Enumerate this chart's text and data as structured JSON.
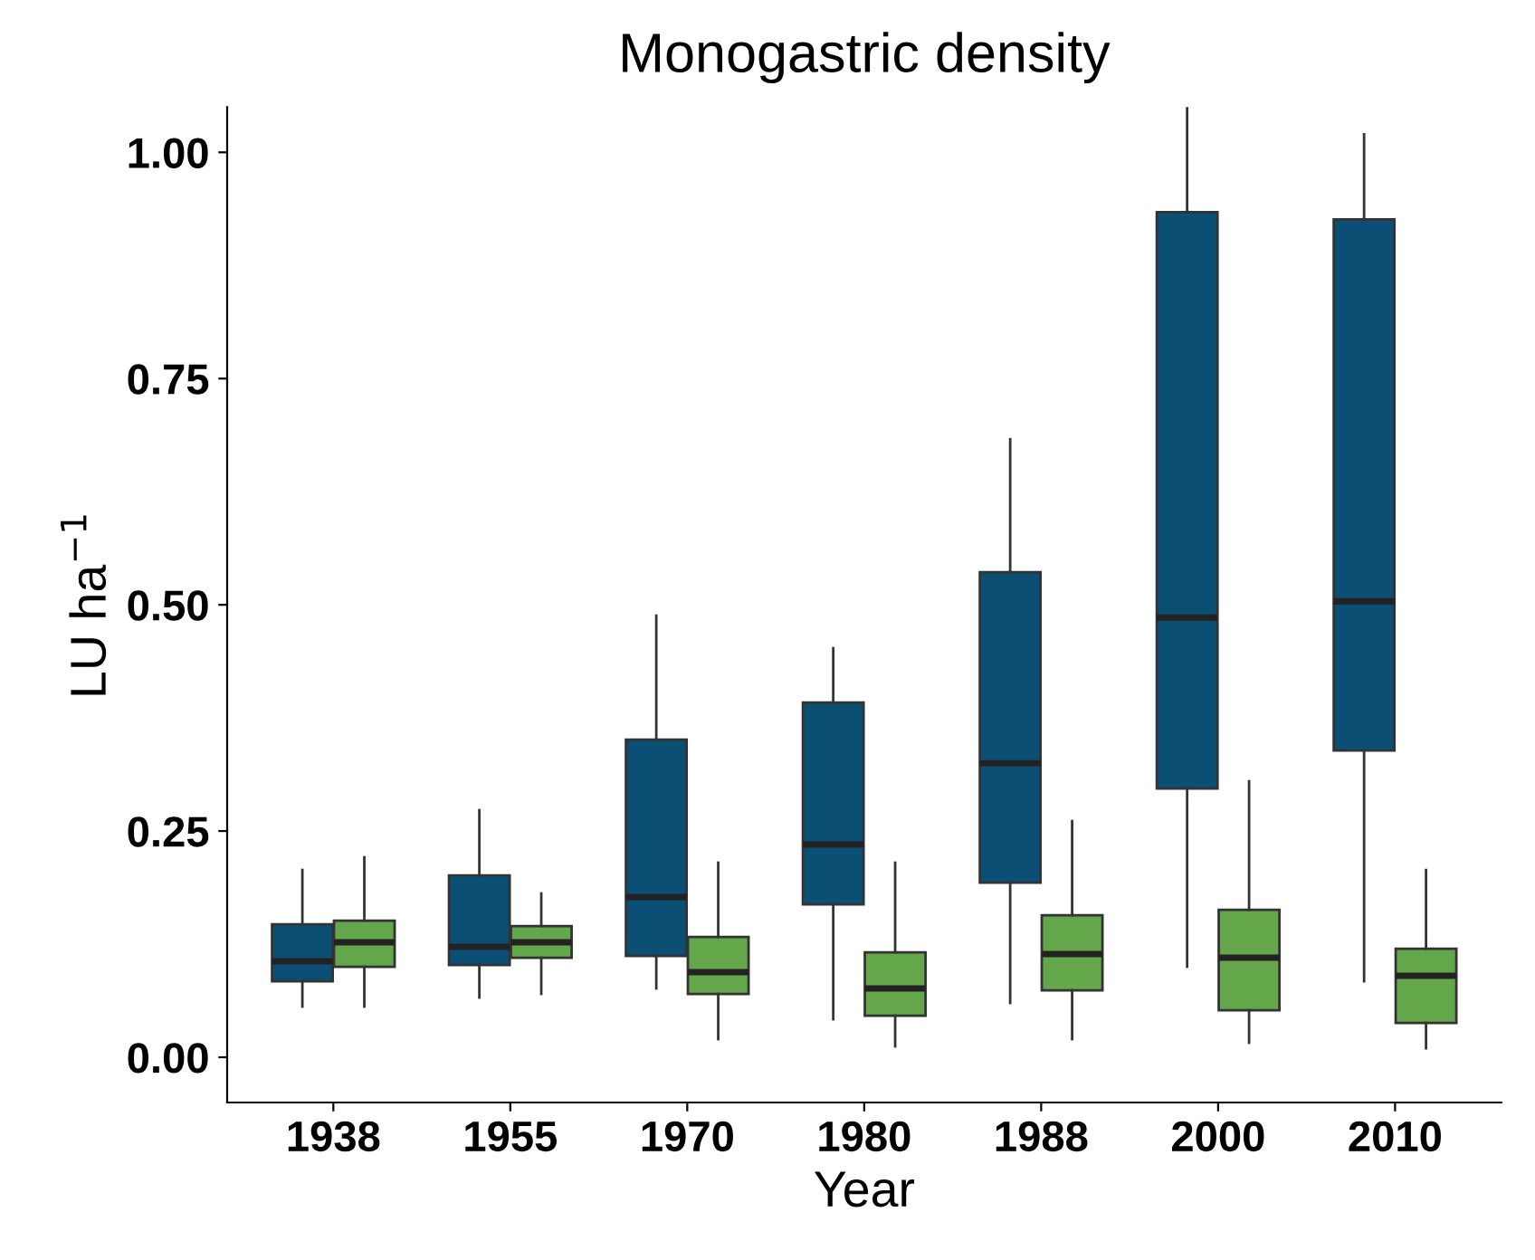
{
  "chart_data": {
    "type": "box",
    "title": "Monogastric density",
    "xlabel": "Year",
    "ylabel": "LU ha$^{−1}$",
    "categories": [
      "1938",
      "1955",
      "1970",
      "1980",
      "1988",
      "2000",
      "2010"
    ],
    "ylim": [
      -0.05,
      1.05
    ],
    "yticks": [
      {
        "value": 0,
        "label": "0.00"
      },
      {
        "value": 0.25,
        "label": "0.25"
      },
      {
        "value": 0.5,
        "label": "0.50"
      },
      {
        "value": 0.75,
        "label": "0.75"
      },
      {
        "value": 1,
        "label": "1.00"
      }
    ],
    "grid": false,
    "series": [
      {
        "color": "#0b4f74",
        "boxes": [
          {
            "low": 0.056,
            "q1": 0.084,
            "median": 0.106,
            "q3": 0.147,
            "high": 0.207
          },
          {
            "low": 0.066,
            "q1": 0.102,
            "median": 0.122,
            "q3": 0.201,
            "high": 0.273
          },
          {
            "low": 0.076,
            "q1": 0.112,
            "median": 0.177,
            "q3": 0.351,
            "high": 0.488
          },
          {
            "low": 0.042,
            "q1": 0.169,
            "median": 0.235,
            "q3": 0.392,
            "high": 0.452
          },
          {
            "low": 0.06,
            "q1": 0.193,
            "median": 0.325,
            "q3": 0.536,
            "high": 0.683
          },
          {
            "low": 0.1,
            "q1": 0.297,
            "median": 0.486,
            "q3": 0.934,
            "high": 1.05
          },
          {
            "low": 0.084,
            "q1": 0.339,
            "median": 0.504,
            "q3": 0.926,
            "high": 1.02
          }
        ]
      },
      {
        "color": "#63a74a",
        "boxes": [
          {
            "low": 0.056,
            "q1": 0.1,
            "median": 0.127,
            "q3": 0.151,
            "high": 0.221
          },
          {
            "low": 0.07,
            "q1": 0.11,
            "median": 0.127,
            "q3": 0.145,
            "high": 0.181
          },
          {
            "low": 0.02,
            "q1": 0.07,
            "median": 0.094,
            "q3": 0.133,
            "high": 0.215
          },
          {
            "low": 0.012,
            "q1": 0.046,
            "median": 0.076,
            "q3": 0.116,
            "high": 0.215
          },
          {
            "low": 0.02,
            "q1": 0.074,
            "median": 0.114,
            "q3": 0.157,
            "high": 0.261
          },
          {
            "low": 0.016,
            "q1": 0.052,
            "median": 0.11,
            "q3": 0.163,
            "high": 0.305
          },
          {
            "low": 0.01,
            "q1": 0.038,
            "median": 0.09,
            "q3": 0.12,
            "high": 0.207
          }
        ]
      }
    ]
  }
}
